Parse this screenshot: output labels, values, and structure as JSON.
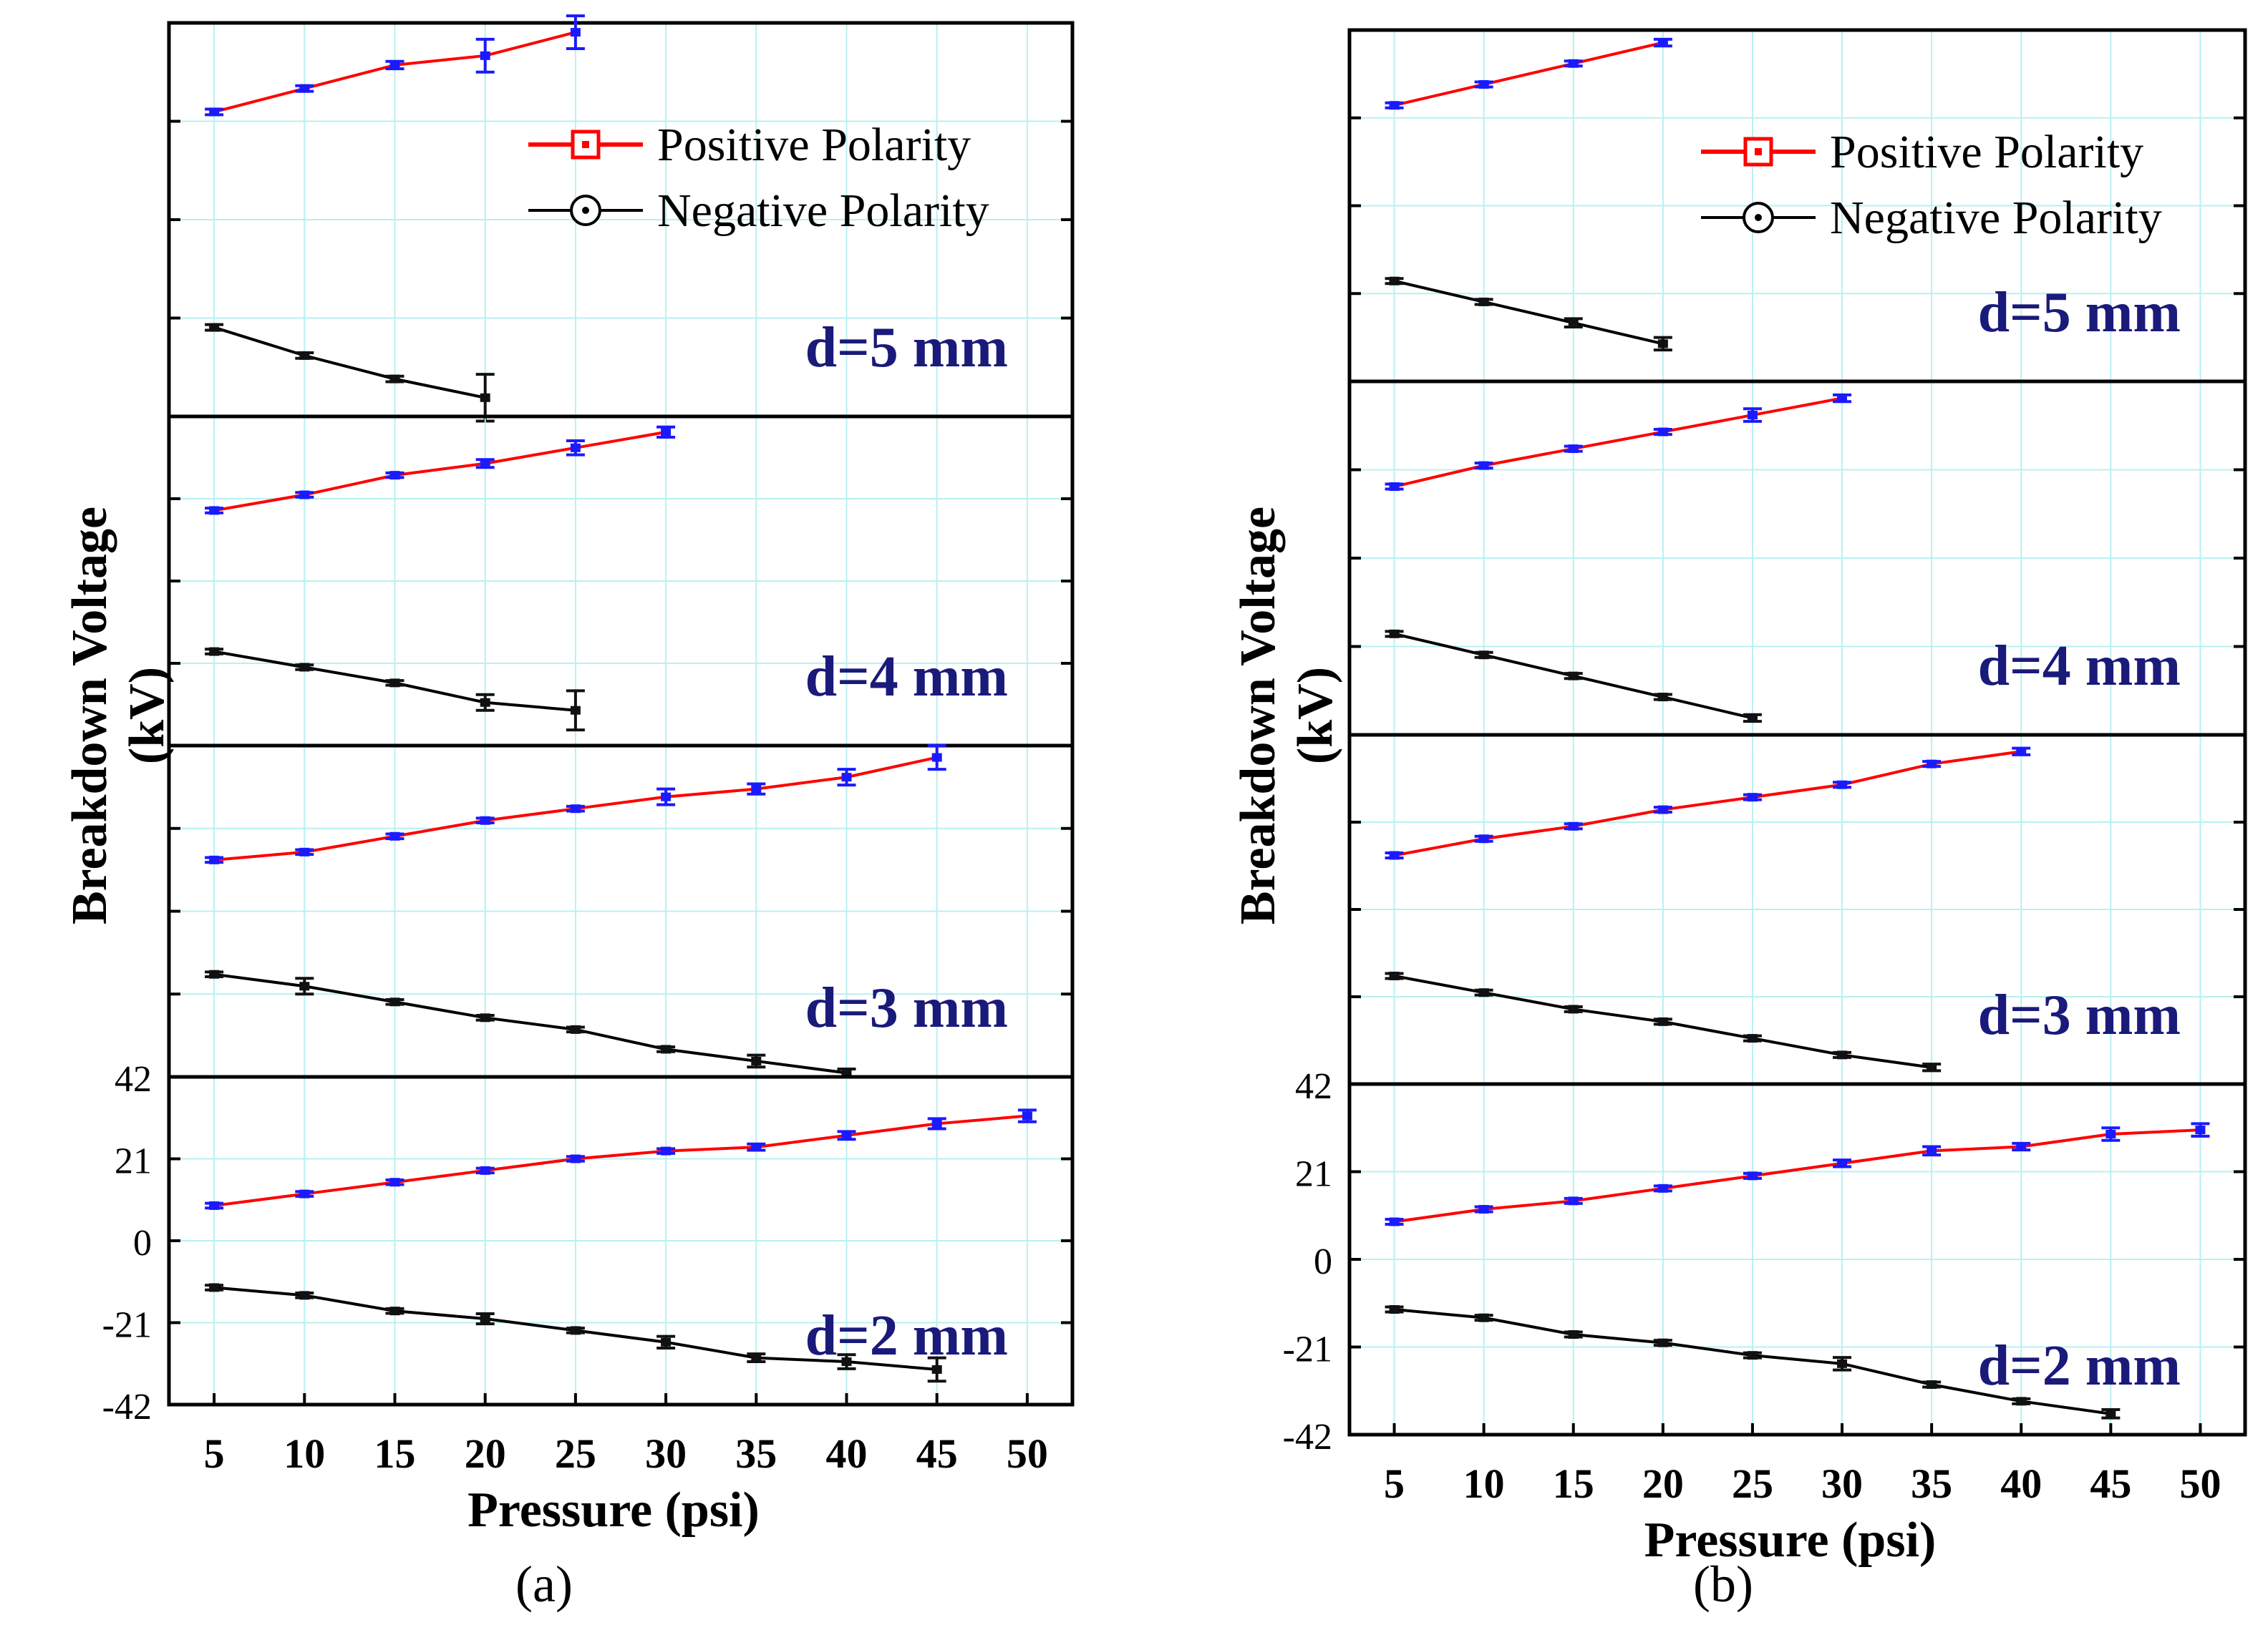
{
  "figure_labels": [
    "(a)",
    "(b)"
  ],
  "colors": {
    "positive_line": "#ff0000",
    "negative_line": "#000000",
    "positive_marker": "#1a1aff",
    "negative_marker": "#111111",
    "grid": "#b8f0f0",
    "d_label": "#1a1a7a",
    "frame": "#000000"
  },
  "chart_data": [
    {
      "id": "a",
      "type": "line",
      "title": "(a)",
      "xlabel": "Pressure (psi)",
      "ylabel": "Breakdown Voltage\n(kV)",
      "xlim": [
        2.5,
        52.5
      ],
      "x_ticks": [
        5,
        10,
        15,
        20,
        25,
        30,
        35,
        40,
        45,
        50
      ],
      "ylim": [
        -42,
        42
      ],
      "y_ticks": [
        -42,
        -21,
        0,
        21,
        42
      ],
      "grid": true,
      "legend": {
        "position": "top-right",
        "entries": [
          "Positive Polarity",
          "Negative Polarity"
        ]
      },
      "panels": [
        {
          "label": "d=5 mm",
          "show_y_ticks": false,
          "series": [
            {
              "name": "Positive Polarity",
              "x": [
                5,
                10,
                15,
                20,
                25
              ],
              "y": [
                23,
                28,
                33,
                35,
                40
              ],
              "err": [
                0.6,
                0.6,
                0.8,
                3.5,
                3.5
              ]
            },
            {
              "name": "Negative Polarity",
              "x": [
                5,
                10,
                15,
                20
              ],
              "y": [
                -23,
                -29,
                -34,
                -38
              ],
              "err": [
                0.6,
                0.6,
                0.6,
                5
              ]
            }
          ]
        },
        {
          "label": "d=4 mm",
          "show_y_ticks": false,
          "series": [
            {
              "name": "Positive Polarity",
              "x": [
                5,
                10,
                15,
                20,
                25,
                30
              ],
              "y": [
                18,
                22,
                27,
                30,
                34,
                38
              ],
              "err": [
                0.6,
                0.6,
                0.6,
                1,
                1.8,
                1.3
              ]
            },
            {
              "name": "Negative Polarity",
              "x": [
                5,
                10,
                15,
                20,
                25
              ],
              "y": [
                -18,
                -22,
                -26,
                -31,
                -33
              ],
              "err": [
                0.6,
                0.6,
                0.6,
                2,
                5
              ]
            }
          ]
        },
        {
          "label": "d=3 mm",
          "show_y_ticks": false,
          "series": [
            {
              "name": "Positive Polarity",
              "x": [
                5,
                10,
                15,
                20,
                25,
                30,
                35,
                40,
                45
              ],
              "y": [
                13,
                15,
                19,
                23,
                26,
                29,
                31,
                34,
                39
              ],
              "err": [
                0.6,
                0.6,
                0.6,
                0.6,
                0.6,
                2,
                1.3,
                2,
                3
              ]
            },
            {
              "name": "Negative Polarity",
              "x": [
                5,
                10,
                15,
                20,
                25,
                30,
                35,
                40
              ],
              "y": [
                -16,
                -19,
                -23,
                -27,
                -30,
                -35,
                -38,
                -41
              ],
              "err": [
                0.6,
                2,
                0.6,
                0.6,
                0.6,
                0.6,
                1.5,
                1
              ]
            }
          ]
        },
        {
          "label": "d=2 mm",
          "show_y_ticks": true,
          "series": [
            {
              "name": "Positive Polarity",
              "x": [
                5,
                10,
                15,
                20,
                25,
                30,
                35,
                40,
                45,
                50
              ],
              "y": [
                9,
                12,
                15,
                18,
                21,
                23,
                24,
                27,
                30,
                32
              ],
              "err": [
                0.6,
                0.6,
                0.6,
                0.6,
                0.6,
                0.6,
                0.8,
                1,
                1.3,
                1.5
              ]
            },
            {
              "name": "Negative Polarity",
              "x": [
                5,
                10,
                15,
                20,
                25,
                30,
                35,
                40,
                45
              ],
              "y": [
                -12,
                -14,
                -18,
                -20,
                -23,
                -26,
                -30,
                -31,
                -33
              ],
              "err": [
                0.6,
                0.6,
                0.6,
                1.3,
                0.6,
                1.5,
                1,
                1.8,
                3
              ]
            }
          ]
        }
      ]
    },
    {
      "id": "b",
      "type": "line",
      "title": "(b)",
      "xlabel": "Pressure (psi)",
      "ylabel": "Breakdown Voltage\n(kV)",
      "xlim": [
        2.5,
        52.5
      ],
      "x_ticks": [
        5,
        10,
        15,
        20,
        25,
        30,
        35,
        40,
        45,
        50
      ],
      "ylim": [
        -42,
        42
      ],
      "y_ticks": [
        -42,
        -21,
        0,
        21,
        42
      ],
      "grid": true,
      "legend": {
        "position": "top-right",
        "entries": [
          "Positive Polarity",
          "Negative Polarity"
        ]
      },
      "panels": [
        {
          "label": "d=5 mm",
          "show_y_ticks": false,
          "series": [
            {
              "name": "Positive Polarity",
              "x": [
                5,
                10,
                15,
                20
              ],
              "y": [
                24,
                29,
                34,
                39
              ],
              "err": [
                0.6,
                0.6,
                0.6,
                0.8
              ]
            },
            {
              "name": "Negative Polarity",
              "x": [
                5,
                10,
                15,
                20
              ],
              "y": [
                -18,
                -23,
                -28,
                -33
              ],
              "err": [
                0.6,
                0.6,
                1,
                1.5
              ]
            }
          ]
        },
        {
          "label": "d=4 mm",
          "show_y_ticks": false,
          "series": [
            {
              "name": "Positive Polarity",
              "x": [
                5,
                10,
                15,
                20,
                25,
                30
              ],
              "y": [
                17,
                22,
                26,
                30,
                34,
                38
              ],
              "err": [
                0.6,
                0.6,
                0.6,
                0.6,
                1.5,
                0.8
              ]
            },
            {
              "name": "Negative Polarity",
              "x": [
                5,
                10,
                15,
                20,
                25
              ],
              "y": [
                -18,
                -23,
                -28,
                -33,
                -38
              ],
              "err": [
                0.6,
                0.6,
                0.6,
                0.6,
                0.8
              ]
            }
          ]
        },
        {
          "label": "d=3 mm",
          "show_y_ticks": false,
          "series": [
            {
              "name": "Positive Polarity",
              "x": [
                5,
                10,
                15,
                20,
                25,
                30,
                35,
                40
              ],
              "y": [
                13,
                17,
                20,
                24,
                27,
                30,
                35,
                38
              ],
              "err": [
                0.6,
                0.6,
                0.6,
                0.6,
                0.6,
                0.6,
                0.6,
                0.8
              ]
            },
            {
              "name": "Negative Polarity",
              "x": [
                5,
                10,
                15,
                20,
                25,
                30,
                35
              ],
              "y": [
                -16,
                -20,
                -24,
                -27,
                -31,
                -35,
                -38
              ],
              "err": [
                0.6,
                0.6,
                0.6,
                0.6,
                0.6,
                0.6,
                0.8
              ]
            }
          ]
        },
        {
          "label": "d=2 mm",
          "show_y_ticks": true,
          "series": [
            {
              "name": "Positive Polarity",
              "x": [
                5,
                10,
                15,
                20,
                25,
                30,
                35,
                40,
                45,
                50
              ],
              "y": [
                9,
                12,
                14,
                17,
                20,
                23,
                26,
                27,
                30,
                31
              ],
              "err": [
                0.6,
                0.6,
                0.6,
                0.6,
                0.6,
                0.8,
                1,
                0.8,
                1.5,
                1.5
              ]
            },
            {
              "name": "Negative Polarity",
              "x": [
                5,
                10,
                15,
                20,
                25,
                30,
                35,
                40,
                45
              ],
              "y": [
                -12,
                -14,
                -18,
                -20,
                -23,
                -25,
                -30,
                -34,
                -37
              ],
              "err": [
                0.6,
                0.6,
                0.6,
                0.6,
                0.6,
                1.5,
                0.6,
                0.6,
                1
              ]
            }
          ]
        }
      ]
    }
  ]
}
